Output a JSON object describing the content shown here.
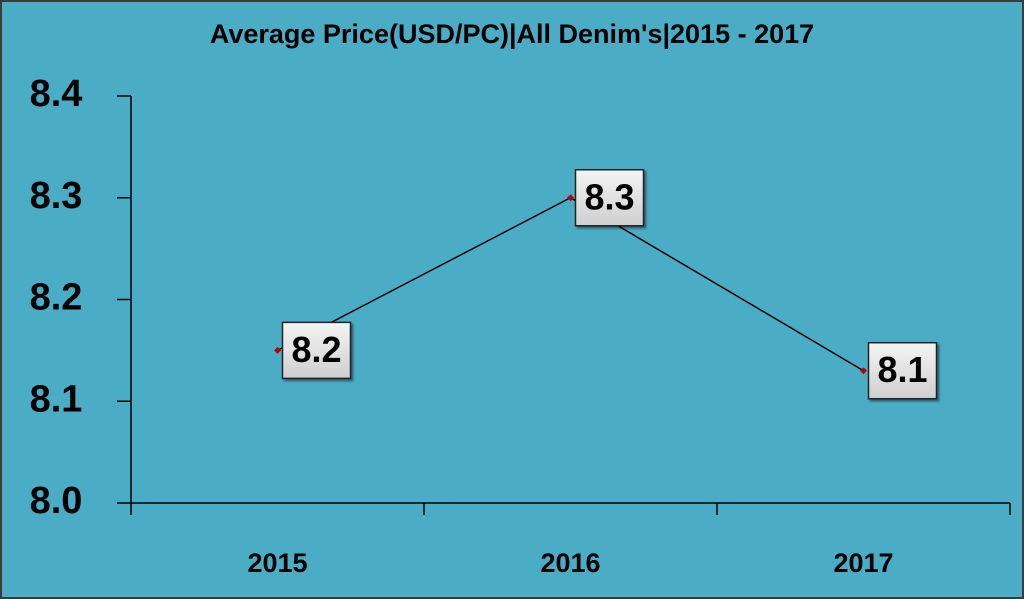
{
  "chart_data": {
    "type": "line",
    "title": "Average Price(USD/PC)|All Denim's|2015 - 2017",
    "categories": [
      "2015",
      "2016",
      "2017"
    ],
    "values": [
      8.15,
      8.3,
      8.13
    ],
    "value_labels": [
      "8.2",
      "8.3",
      "8.1"
    ],
    "color": "#000000",
    "marker_color": "#c00000",
    "ylim": [
      8.0,
      8.4
    ],
    "yticks": [
      {
        "value": 8,
        "label": "8.0"
      },
      8.1,
      8.2,
      8.3,
      8.4
    ]
  }
}
